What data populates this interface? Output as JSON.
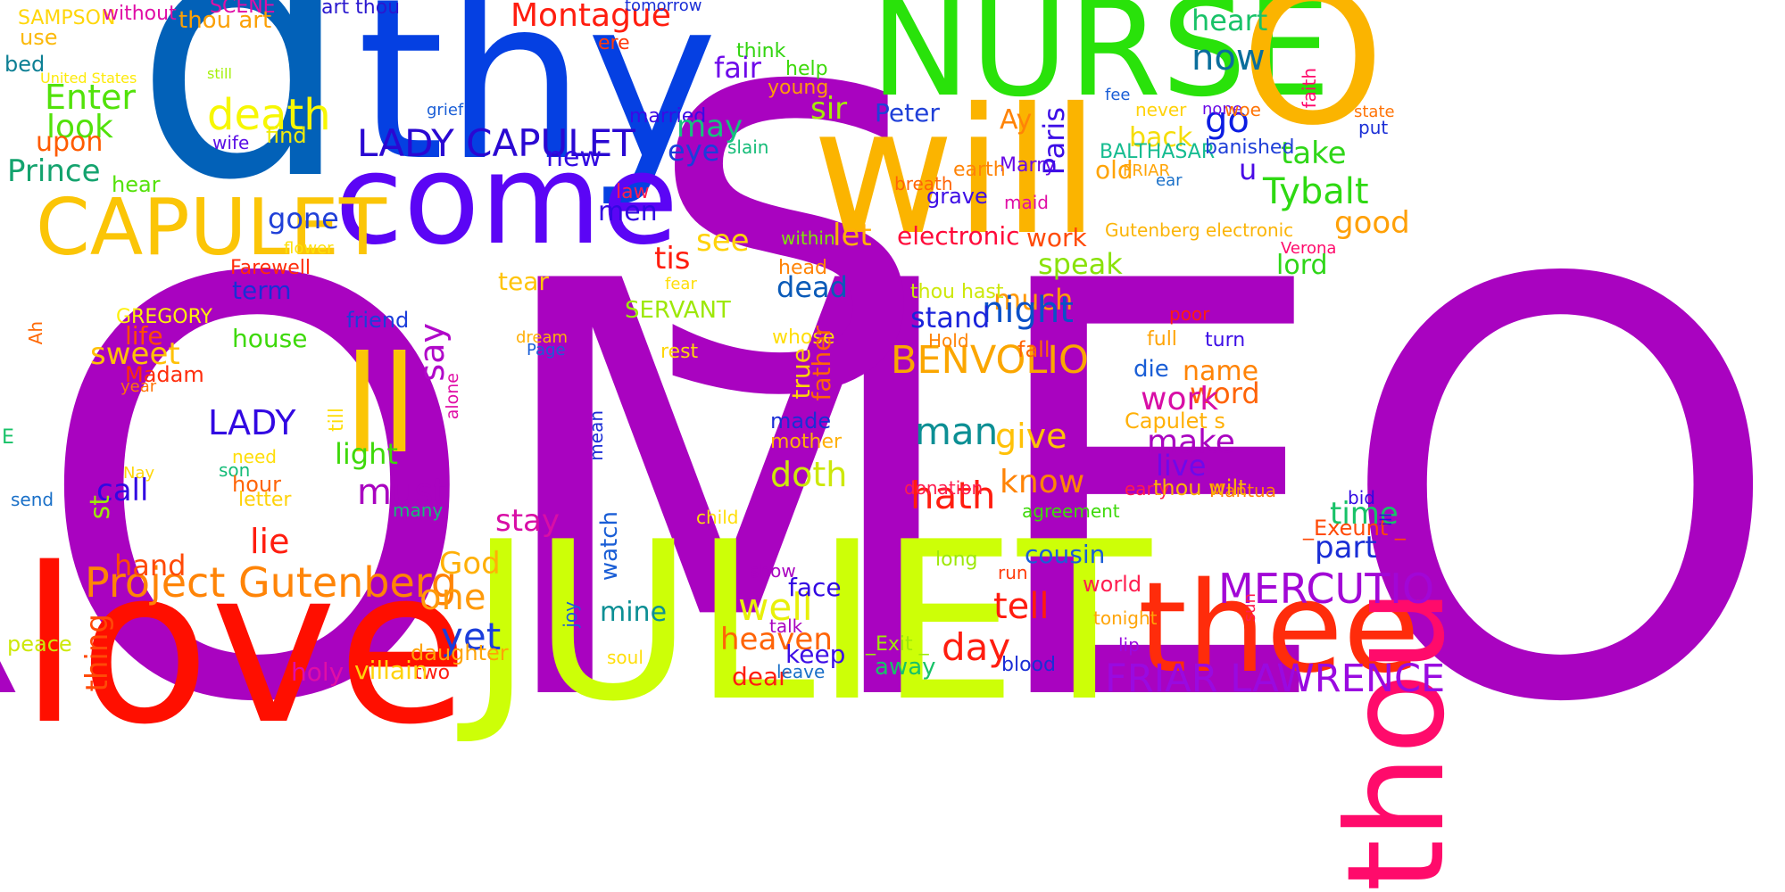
{
  "words": [
    {
      "text": "ROMEO",
      "color": "#a903c0"
    },
    {
      "text": "s",
      "color": "#a903c0"
    },
    {
      "text": "d",
      "color": "#0261b8"
    },
    {
      "text": "thy",
      "color": "#0540e2"
    },
    {
      "text": "NURSE",
      "color": "#29e20a"
    },
    {
      "text": "O",
      "color": "#fbb400"
    },
    {
      "text": "will",
      "color": "#fbb400"
    },
    {
      "text": "JULIET",
      "color": "#cdff07"
    },
    {
      "text": "love",
      "color": "#ff0f00"
    },
    {
      "text": "thee",
      "color": "#ff2c0b"
    },
    {
      "text": "thou",
      "color": "#ff0b6b"
    },
    {
      "text": "come",
      "color": "#5b05f5"
    },
    {
      "text": "ll",
      "color": "#fbc507"
    },
    {
      "text": "CAPULET",
      "color": "#fbc507"
    },
    {
      "text": "LADY CAPULET",
      "color": "#2a08d2"
    },
    {
      "text": "death",
      "color": "#f7f703"
    },
    {
      "text": "Project Gutenberg",
      "color": "#ff8407"
    },
    {
      "text": "MERCUTIO",
      "color": "#a207d6"
    },
    {
      "text": "FRIAR LAWRENCE",
      "color": "#9a0ae0"
    },
    {
      "text": "BENVOLIO",
      "color": "#fba600"
    },
    {
      "text": "Tybalt",
      "color": "#2ed912"
    },
    {
      "text": "Montague",
      "color": "#ff1d0f"
    },
    {
      "text": "heart",
      "color": "#18c268"
    },
    {
      "text": "now",
      "color": "#0a6e9c"
    },
    {
      "text": "go",
      "color": "#0c1de2"
    },
    {
      "text": "take",
      "color": "#2fd618"
    },
    {
      "text": "good",
      "color": "#ffa007"
    },
    {
      "text": "lord",
      "color": "#2fd618"
    },
    {
      "text": "Enter",
      "color": "#52e20a"
    },
    {
      "text": "look",
      "color": "#52e20a"
    },
    {
      "text": "upon",
      "color": "#ff5b00"
    },
    {
      "text": "Prince",
      "color": "#14a36e"
    },
    {
      "text": "hear",
      "color": "#55e20a"
    },
    {
      "text": "use",
      "color": "#fbb90a"
    },
    {
      "text": "bed",
      "color": "#0c7f94"
    },
    {
      "text": "SAMPSON",
      "color": "#ffd60a"
    },
    {
      "text": "without",
      "color": "#e00ea6"
    },
    {
      "text": "SCENE",
      "color": "#e00ea6"
    },
    {
      "text": "thou art",
      "color": "#fba005"
    },
    {
      "text": "art thou",
      "color": "#2a18cf"
    },
    {
      "text": "tomorrow",
      "color": "#1a2ed6"
    },
    {
      "text": "United States",
      "color": "#fdea0a"
    },
    {
      "text": "still",
      "color": "#a6f00a"
    },
    {
      "text": "wife",
      "color": "#5b0fe6"
    },
    {
      "text": "find",
      "color": "#f0ea0a"
    },
    {
      "text": "grief",
      "color": "#1a5ed6"
    },
    {
      "text": "ere",
      "color": "#ff3a0a"
    },
    {
      "text": "think",
      "color": "#32d40f"
    },
    {
      "text": "help",
      "color": "#3ed90a"
    },
    {
      "text": "young",
      "color": "#ff9a0a"
    },
    {
      "text": "married",
      "color": "#3a0ae6"
    },
    {
      "text": "slain",
      "color": "#15bc78"
    },
    {
      "text": "fair",
      "color": "#6e0aea"
    },
    {
      "text": "may",
      "color": "#17c07e"
    },
    {
      "text": "eye",
      "color": "#1b3ddb"
    },
    {
      "text": "new",
      "color": "#3208e2"
    },
    {
      "text": "sir",
      "color": "#a6e80a"
    },
    {
      "text": "Peter",
      "color": "#2040d8"
    },
    {
      "text": "Ay",
      "color": "#ff8407"
    },
    {
      "text": "back",
      "color": "#f5dd07"
    },
    {
      "text": "old",
      "color": "#ffa407"
    },
    {
      "text": "Marry",
      "color": "#6a0ae6"
    },
    {
      "text": "Paris",
      "color": "#3d0ee6"
    },
    {
      "text": "BALTHASAR",
      "color": "#15bc90"
    },
    {
      "text": "FRIAR",
      "color": "#ffa407"
    },
    {
      "text": "banished",
      "color": "#2040d8"
    },
    {
      "text": "u",
      "color": "#4a0ae6"
    },
    {
      "text": "fee",
      "color": "#1a5ed6"
    },
    {
      "text": "never",
      "color": "#ffd20a"
    },
    {
      "text": "none",
      "color": "#6a0ae6"
    },
    {
      "text": "woe",
      "color": "#ff7407"
    },
    {
      "text": "faith",
      "color": "#ff0a6b"
    },
    {
      "text": "state",
      "color": "#ff7407"
    },
    {
      "text": "put",
      "color": "#1a2ed6"
    },
    {
      "text": "ear",
      "color": "#1a70c8"
    },
    {
      "text": "earth",
      "color": "#ff8407"
    },
    {
      "text": "breath",
      "color": "#ff6407"
    },
    {
      "text": "grave",
      "color": "#3d0ee6"
    },
    {
      "text": "maid",
      "color": "#e00ea6"
    },
    {
      "text": "law",
      "color": "#ff1d4f"
    },
    {
      "text": "men",
      "color": "#3208e2"
    },
    {
      "text": "gone",
      "color": "#2040d8"
    },
    {
      "text": "see",
      "color": "#ffd20a"
    },
    {
      "text": "tis",
      "color": "#ff1d0f"
    },
    {
      "text": "let",
      "color": "#ffb007"
    },
    {
      "text": "within",
      "color": "#82e20a"
    },
    {
      "text": "flower",
      "color": "#fde00a"
    },
    {
      "text": "electronic",
      "color": "#ff0a3a"
    },
    {
      "text": "work",
      "color": "#ff4a07"
    },
    {
      "text": "speak",
      "color": "#8ae20a"
    },
    {
      "text": "Gutenberg electronic",
      "color": "#fbb407"
    },
    {
      "text": "Verona",
      "color": "#ff0a6b"
    },
    {
      "text": "Farewell",
      "color": "#ff2c0b"
    },
    {
      "text": "term",
      "color": "#1a2ed6"
    },
    {
      "text": "tear",
      "color": "#ffc40a"
    },
    {
      "text": "fear",
      "color": "#ffde0a"
    },
    {
      "text": "head",
      "color": "#ff8407"
    },
    {
      "text": "dead",
      "color": "#0a5ab8"
    },
    {
      "text": "much",
      "color": "#ff9a0a"
    },
    {
      "text": "thou hast",
      "color": "#cde80a"
    },
    {
      "text": "night",
      "color": "#0a50c8"
    },
    {
      "text": "stand",
      "color": "#1b24db"
    },
    {
      "text": "friend",
      "color": "#1b3ddb"
    },
    {
      "text": "say",
      "color": "#b008c9"
    },
    {
      "text": "SERVANT",
      "color": "#9ee80a"
    },
    {
      "text": "GREGORY",
      "color": "#fdf00a"
    },
    {
      "text": "Ah",
      "color": "#ff6a07"
    },
    {
      "text": "life",
      "color": "#ff4a07"
    },
    {
      "text": "house",
      "color": "#3ed90a"
    },
    {
      "text": "sweet",
      "color": "#ffc107"
    },
    {
      "text": "Madam",
      "color": "#ff2c0b"
    },
    {
      "text": "year",
      "color": "#ff7407"
    },
    {
      "text": "alone",
      "color": "#e00ea6"
    },
    {
      "text": "dream",
      "color": "#ffb007"
    },
    {
      "text": "Page",
      "color": "#1a5ed6"
    },
    {
      "text": "rest",
      "color": "#ffd60a"
    },
    {
      "text": "whose",
      "color": "#ffde0a"
    },
    {
      "text": "true",
      "color": "#ffd20a"
    },
    {
      "text": "father",
      "color": "#ff6407"
    },
    {
      "text": "Hold",
      "color": "#ff8407"
    },
    {
      "text": "fall",
      "color": "#ff6407"
    },
    {
      "text": "poor",
      "color": "#ff1d0f"
    },
    {
      "text": "full",
      "color": "#ffa407"
    },
    {
      "text": "turn",
      "color": "#3d0ee6"
    },
    {
      "text": "name",
      "color": "#ff8407"
    },
    {
      "text": "die",
      "color": "#1a5ed6"
    },
    {
      "text": "word",
      "color": "#ff6407"
    },
    {
      "text": "work",
      "color": "#d80ea6"
    },
    {
      "text": "LADY",
      "color": "#3208e2"
    },
    {
      "text": "man",
      "color": "#0c8f94"
    },
    {
      "text": "give",
      "color": "#ffc107"
    },
    {
      "text": "make",
      "color": "#a903c0"
    },
    {
      "text": "live",
      "color": "#6e0aea"
    },
    {
      "text": "Capulet s",
      "color": "#ffb007"
    },
    {
      "text": "light",
      "color": "#3ed90a"
    },
    {
      "text": "till",
      "color": "#ffde0a"
    },
    {
      "text": "mean",
      "color": "#1a2ed6"
    },
    {
      "text": "made",
      "color": "#1a2ed6"
    },
    {
      "text": "mother",
      "color": "#ffb007"
    },
    {
      "text": "must",
      "color": "#a903c0"
    },
    {
      "text": "doth",
      "color": "#cde80a"
    },
    {
      "text": "hath",
      "color": "#ff1d0f"
    },
    {
      "text": "know",
      "color": "#ff8407"
    },
    {
      "text": "E",
      "color": "#18c268"
    },
    {
      "text": "need",
      "color": "#ffde0a"
    },
    {
      "text": "son",
      "color": "#15bc78"
    },
    {
      "text": "hour",
      "color": "#ff6407"
    },
    {
      "text": "letter",
      "color": "#ffd20a"
    },
    {
      "text": "Nay",
      "color": "#ffd60a"
    },
    {
      "text": "send",
      "color": "#1a70c8"
    },
    {
      "text": "call",
      "color": "#3208e2"
    },
    {
      "text": "many",
      "color": "#15bc78"
    },
    {
      "text": "donation",
      "color": "#ff1d4f"
    },
    {
      "text": "early",
      "color": "#ff1d4f"
    },
    {
      "text": "agreement",
      "color": "#3ed90a"
    },
    {
      "text": "child",
      "color": "#ffde0a"
    },
    {
      "text": "bid",
      "color": "#3208e2"
    },
    {
      "text": "Mantua",
      "color": "#ff8407"
    },
    {
      "text": "thou wilt",
      "color": "#fbb407"
    },
    {
      "text": "time",
      "color": "#18c268"
    },
    {
      "text": "_Exeunt _",
      "color": "#ff4a07"
    },
    {
      "text": "part",
      "color": "#1a2ed6"
    },
    {
      "text": "stay",
      "color": "#d80ea6"
    },
    {
      "text": "st",
      "color": "#9ee80a"
    },
    {
      "text": "lie",
      "color": "#ff1d0f"
    },
    {
      "text": "hand",
      "color": "#ff4a07"
    },
    {
      "text": "watch",
      "color": "#1a5ed6"
    },
    {
      "text": "cousin",
      "color": "#1a5ed6"
    },
    {
      "text": "show",
      "color": "#a903c0"
    },
    {
      "text": "run",
      "color": "#ff3a0a"
    },
    {
      "text": "God",
      "color": "#ffb007"
    },
    {
      "text": "one",
      "color": "#ff9a0a"
    },
    {
      "text": "yet",
      "color": "#1b3ddb"
    },
    {
      "text": "well",
      "color": "#e8f00a"
    },
    {
      "text": "tell",
      "color": "#ff1d0f"
    },
    {
      "text": "mine",
      "color": "#0c8f94"
    },
    {
      "text": "face",
      "color": "#3208e2"
    },
    {
      "text": "heaven",
      "color": "#ff6407"
    },
    {
      "text": "day",
      "color": "#ff1d0f"
    },
    {
      "text": "keep",
      "color": "#3d0ee6"
    },
    {
      "text": "talk",
      "color": "#a903c0"
    },
    {
      "text": "long",
      "color": "#9ee80a"
    },
    {
      "text": "_Exit _",
      "color": "#9ee80a"
    },
    {
      "text": "away",
      "color": "#18c268"
    },
    {
      "text": "world",
      "color": "#ff1d4f"
    },
    {
      "text": "tonight",
      "color": "#ffa407"
    },
    {
      "text": "lip",
      "color": "#9a0ae0"
    },
    {
      "text": "sun",
      "color": "#ff1d4f"
    },
    {
      "text": "ill",
      "color": "#3208e2"
    },
    {
      "text": "dear",
      "color": "#ff1d0f"
    },
    {
      "text": "leave",
      "color": "#1a70c8"
    },
    {
      "text": "blood",
      "color": "#1a2ed6"
    },
    {
      "text": "thing",
      "color": "#ff4a07"
    },
    {
      "text": "peace",
      "color": "#cde80a"
    },
    {
      "text": "joy",
      "color": "#1a5ed6"
    },
    {
      "text": "daughter",
      "color": "#ffa407"
    },
    {
      "text": "soul",
      "color": "#ffde0a"
    },
    {
      "text": "two",
      "color": "#ff1d0f"
    },
    {
      "text": "holy",
      "color": "#e00ea6"
    },
    {
      "text": "villain",
      "color": "#ffd20a"
    }
  ]
}
